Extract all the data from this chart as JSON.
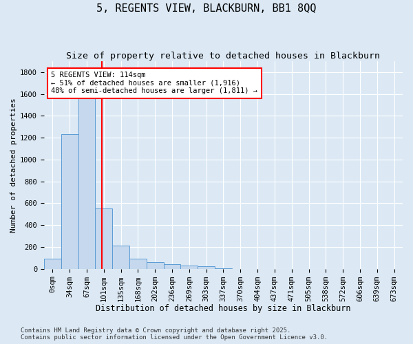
{
  "title": "5, REGENTS VIEW, BLACKBURN, BB1 8QQ",
  "subtitle": "Size of property relative to detached houses in Blackburn",
  "xlabel": "Distribution of detached houses by size in Blackburn",
  "ylabel": "Number of detached properties",
  "bar_labels": [
    "0sqm",
    "34sqm",
    "67sqm",
    "101sqm",
    "135sqm",
    "168sqm",
    "202sqm",
    "236sqm",
    "269sqm",
    "303sqm",
    "337sqm",
    "370sqm",
    "404sqm",
    "437sqm",
    "471sqm",
    "505sqm",
    "538sqm",
    "572sqm",
    "606sqm",
    "639sqm",
    "673sqm"
  ],
  "bar_values": [
    90,
    1230,
    1700,
    550,
    210,
    90,
    60,
    40,
    30,
    20,
    5,
    0,
    0,
    0,
    0,
    0,
    0,
    0,
    0,
    0,
    0
  ],
  "bar_color": "#c5d8ed",
  "bar_edge_color": "#5b9bd5",
  "vline_color": "red",
  "annotation_text": "5 REGENTS VIEW: 114sqm\n← 51% of detached houses are smaller (1,916)\n48% of semi-detached houses are larger (1,811) →",
  "annotation_box_color": "white",
  "annotation_box_edge_color": "red",
  "ylim": [
    0,
    1900
  ],
  "yticks": [
    0,
    200,
    400,
    600,
    800,
    1000,
    1200,
    1400,
    1600,
    1800
  ],
  "background_color": "#dce9f5",
  "plot_bg_color": "#dce9f5",
  "grid_color": "#ffffff",
  "footer": "Contains HM Land Registry data © Crown copyright and database right 2025.\nContains public sector information licensed under the Open Government Licence v3.0.",
  "title_fontsize": 11,
  "subtitle_fontsize": 9.5,
  "xlabel_fontsize": 8.5,
  "ylabel_fontsize": 8,
  "annotation_fontsize": 7.5,
  "footer_fontsize": 6.5,
  "tick_fontsize": 7.5
}
